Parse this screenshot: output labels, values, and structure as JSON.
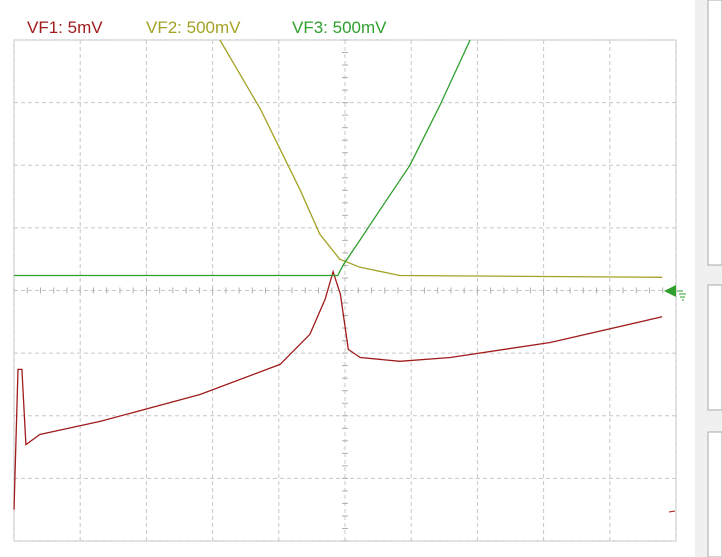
{
  "chart_data": {
    "type": "line",
    "xlim": [
      0,
      10
    ],
    "ylim": [
      -4,
      4
    ],
    "xticks": [
      0,
      1,
      2,
      3,
      4,
      5,
      6,
      7,
      8,
      9,
      10
    ],
    "yticks": [
      -4,
      -3,
      -2,
      -1,
      0,
      1,
      2,
      3,
      4
    ],
    "grid": true,
    "series": [
      {
        "name": "VF1: 5mV",
        "color": "#a01c1c",
        "x": [
          0,
          0.06,
          0.12,
          0.18,
          0.39,
          1.3,
          2.81,
          4.02,
          4.47,
          4.7,
          4.82,
          4.93,
          5.05,
          5.23,
          5.83,
          6.59,
          8.1,
          9.79
        ],
        "values": [
          -3.5,
          -1.26,
          -1.26,
          -2.46,
          -2.3,
          -2.09,
          -1.66,
          -1.18,
          -0.7,
          -0.14,
          0.3,
          -0.06,
          -0.94,
          -1.07,
          -1.13,
          -1.07,
          -0.83,
          -0.42
        ]
      },
      {
        "name": "VF2: 500mV",
        "color": "#a3a225",
        "x": [
          3.11,
          3.72,
          4.32,
          4.62,
          4.92,
          5.23,
          5.83,
          9.79
        ],
        "values": [
          4.0,
          2.9,
          1.61,
          0.9,
          0.5,
          0.37,
          0.24,
          0.21
        ]
      },
      {
        "name": "VF3: 500mV",
        "color": "#2ea02e",
        "x": [
          0,
          4.89,
          4.98,
          5.23,
          5.53,
          5.98,
          6.44,
          6.89
        ],
        "values": [
          0.24,
          0.24,
          0.42,
          0.81,
          1.29,
          2.0,
          2.97,
          4.0
        ]
      }
    ]
  }
}
